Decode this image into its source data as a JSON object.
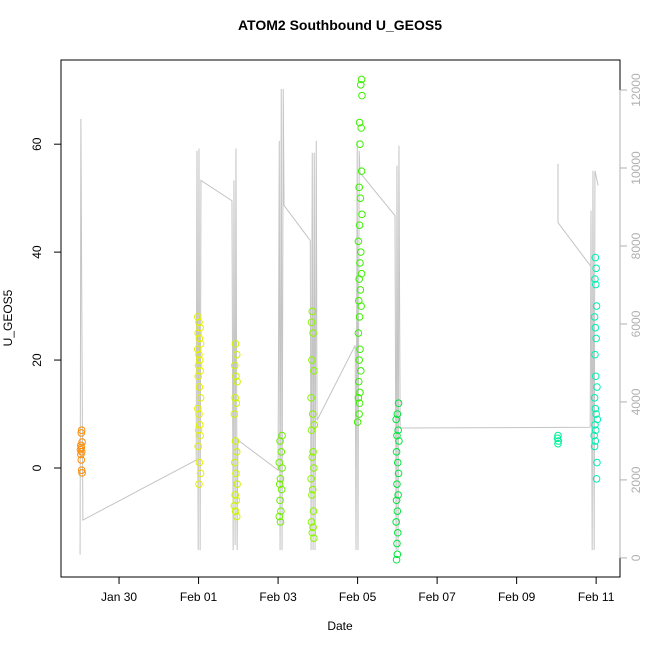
{
  "chart_data": {
    "type": "scatter",
    "title": "ATOM2 Southbound U_GEOS5",
    "x_label": "Date",
    "y_label": "U_GEOS5",
    "xlim": [
      28.54,
      42.6
    ],
    "xticks": [
      {
        "value": 30,
        "label": "Jan 30"
      },
      {
        "value": 32,
        "label": "Feb 01"
      },
      {
        "value": 34,
        "label": "Feb 03"
      },
      {
        "value": 36,
        "label": "Feb 05"
      },
      {
        "value": 38,
        "label": "Feb 07"
      },
      {
        "value": 40,
        "label": "Feb 09"
      },
      {
        "value": 42,
        "label": "Feb 11"
      }
    ],
    "ylim": [
      -20.2,
      75.6
    ],
    "yticks": [
      0,
      20,
      40,
      60
    ],
    "y2lim": [
      -490,
      12770
    ],
    "y2ticks": [
      0,
      2000,
      4000,
      6000,
      8000,
      10000,
      12000
    ],
    "y2_color": "#b0b0b0",
    "series": [
      {
        "type": "line",
        "axis": "y2",
        "color": "#c4c4c4",
        "x": [
          29.02,
          29.04,
          29.09,
          31.94,
          31.96,
          31.99,
          32.01,
          32.04,
          32.06,
          32.84,
          32.87,
          32.89,
          32.92,
          32.94,
          32.97,
          32.99,
          34.0,
          34.03,
          34.05,
          34.08,
          34.1,
          34.13,
          34.15,
          34.81,
          34.83,
          34.86,
          34.88,
          34.91,
          34.93,
          34.96,
          34.98,
          35.94,
          35.96,
          35.99,
          36.01,
          36.04,
          36.06,
          36.94,
          36.97,
          36.99,
          37.02,
          37.04,
          37.07,
          41.85,
          41.87,
          41.9,
          41.92,
          41.95,
          41.97,
          42.05,
          null,
          41.04,
          41.04,
          41.85
        ],
        "values": [
          80,
          11260,
          970,
          2510,
          10440,
          200,
          10500,
          200,
          9680,
          9160,
          200,
          9680,
          330,
          10500,
          200,
          3020,
          2250,
          10700,
          200,
          12030,
          200,
          12030,
          9040,
          8140,
          200,
          10390,
          200,
          10390,
          200,
          10700,
          3530,
          5450,
          200,
          10700,
          200,
          10440,
          9880,
          8780,
          200,
          10060,
          200,
          10570,
          3330,
          3350,
          8910,
          200,
          9930,
          200,
          9930,
          9550,
          null,
          10110,
          8600,
          7500
        ]
      },
      {
        "type": "scatter",
        "color": "#ff8c00",
        "x": [
          29.06,
          29.05,
          29.07,
          29.04,
          29.05,
          29.03,
          29.06,
          29.04,
          29.05,
          29.06,
          29.07
        ],
        "values": [
          7,
          6.5,
          4.8,
          4.2,
          3.8,
          3.4,
          3,
          2.5,
          1.5,
          -0.4,
          -0.9
        ]
      },
      {
        "type": "scatter",
        "color": "#e6f000",
        "x": [
          31.98,
          32.01,
          32.04,
          31.99,
          32.02,
          32.05,
          31.98,
          32.01,
          32.03,
          32.0,
          32.04,
          31.99,
          32.02,
          32.05,
          31.98,
          32.01,
          32.03,
          32.0,
          32.04,
          31.99,
          32.02,
          32.05,
          32.01
        ],
        "values": [
          28,
          27,
          26,
          25,
          24,
          23,
          22,
          21,
          20,
          19,
          18,
          17,
          15,
          13,
          11,
          10,
          8,
          7,
          6,
          4,
          1,
          -1,
          -3
        ]
      },
      {
        "type": "scatter",
        "color": "#ccf500",
        "x": [
          32.93,
          32.96,
          32.91,
          32.94,
          32.97,
          32.92,
          32.95,
          32.9,
          32.93,
          32.96,
          32.91,
          32.94,
          32.97,
          32.92,
          32.95,
          32.9,
          32.93,
          32.96
        ],
        "values": [
          23,
          21,
          19,
          17,
          16,
          13,
          12,
          10,
          5,
          3,
          1,
          -1,
          -3,
          -5,
          -6,
          -7,
          -8,
          -9
        ]
      },
      {
        "type": "scatter",
        "color": "#6ef000",
        "x": [
          34.1,
          34.05,
          34.08,
          34.03,
          34.1,
          34.06,
          34.04,
          34.09,
          34.05,
          34.07,
          34.03,
          34.06
        ],
        "values": [
          6,
          5,
          3,
          1,
          0,
          -2,
          -3,
          -4,
          -6,
          -8,
          -9,
          -10
        ]
      },
      {
        "type": "scatter",
        "color": "#8cf500",
        "x": [
          34.86,
          34.84,
          34.88,
          34.85,
          34.9,
          34.83,
          34.87,
          34.91,
          34.84,
          34.88,
          34.86,
          34.9,
          34.83,
          34.87,
          34.85,
          34.89,
          34.84,
          34.88,
          34.86,
          34.9
        ],
        "values": [
          29,
          27,
          25,
          20,
          18,
          13,
          10,
          8,
          7,
          3,
          2,
          0,
          -2,
          -4,
          -5,
          -8,
          -10,
          -11,
          -12,
          -13
        ]
      },
      {
        "type": "scatter",
        "color": "#3cf000",
        "x": [
          36.1,
          36.08,
          36.11,
          36.05,
          36.09,
          36.06,
          36.1,
          36.04,
          36.07,
          36.11,
          36.05,
          36.02,
          36.08,
          36.06,
          36.1,
          36.04,
          36.07,
          36.03,
          36.09,
          36.05,
          36.02,
          36.06,
          36.04,
          36.08,
          36.03,
          36.06,
          36.02,
          36.05,
          36.04,
          36.0
        ],
        "values": [
          72,
          71,
          69,
          64,
          63,
          60,
          55,
          52,
          50,
          47,
          45,
          42,
          40,
          38,
          36,
          35,
          33,
          31,
          30,
          28,
          25,
          22,
          20,
          18,
          16,
          14,
          13,
          12,
          10,
          8.5
        ]
      },
      {
        "type": "scatter",
        "color": "#00e63c",
        "x": [
          37.03,
          37.0,
          36.97,
          37.02,
          36.99,
          37.04,
          36.98,
          37.01,
          37.03,
          36.99,
          37.02,
          36.98,
          37.0,
          36.97,
          37.01,
          36.99,
          37.0,
          36.98
        ],
        "values": [
          12,
          10,
          9,
          7,
          6,
          5,
          3,
          1,
          -1,
          -3,
          -5,
          -6,
          -8,
          -10,
          -12,
          -14,
          -16,
          -17
        ]
      },
      {
        "type": "scatter",
        "color": "#00f09a",
        "x": [
          41.04,
          41.03,
          41.05,
          41.04
        ],
        "values": [
          6,
          5.5,
          5,
          4.5
        ]
      },
      {
        "type": "scatter",
        "color": "#00f0b4",
        "x": [
          41.98,
          42.0,
          41.97,
          41.99,
          42.01,
          41.96,
          41.98,
          42.0,
          41.97,
          41.99,
          42.02,
          41.96,
          41.98,
          42.0,
          42.03,
          41.97,
          41.99,
          41.95,
          41.98,
          41.96,
          42.02,
          42.01
        ],
        "values": [
          39,
          37,
          35,
          34,
          30,
          28,
          26,
          24,
          21,
          17,
          15,
          13,
          11,
          10,
          9,
          8,
          7,
          6,
          5,
          4,
          1,
          -2
        ]
      }
    ]
  }
}
